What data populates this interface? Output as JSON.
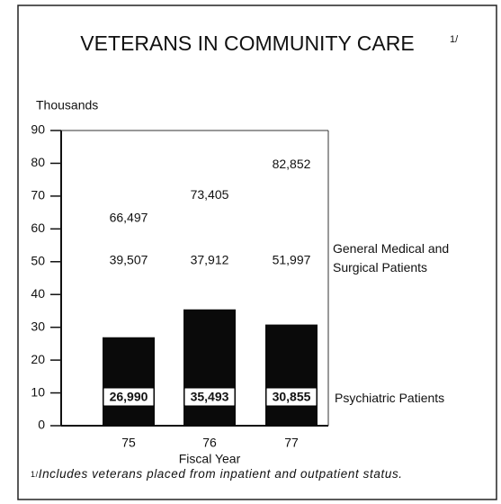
{
  "chart_data": {
    "type": "stacked_bar",
    "title": "VETERANS IN COMMUNITY CARE",
    "title_note": "1/",
    "ylabel": "Thousands",
    "xlabel": "Fiscal Year",
    "categories": [
      "75",
      "76",
      "77"
    ],
    "series": [
      {
        "name": "Psychiatric Patients",
        "color": "#0a0a0a",
        "values": [
          26.99,
          35.493,
          30.855
        ],
        "value_labels": [
          "26,990",
          "35,493",
          "30,855"
        ]
      },
      {
        "name": "General Medical and Surgical Patients",
        "color": "#ffffff",
        "values": [
          39.507,
          37.912,
          51.997
        ],
        "value_labels": [
          "39,507",
          "37,912",
          "51,997"
        ]
      }
    ],
    "totals": {
      "values": [
        66.497,
        73.405,
        82.852
      ],
      "value_labels": [
        "66,497",
        "73,405",
        "82,852"
      ]
    },
    "ylim": [
      0,
      90
    ],
    "yticks": [
      0,
      10,
      20,
      30,
      40,
      50,
      60,
      70,
      80,
      90
    ],
    "footnote": {
      "marker": "1/",
      "text": "Includes veterans placed from inpatient and outpatient status."
    }
  }
}
